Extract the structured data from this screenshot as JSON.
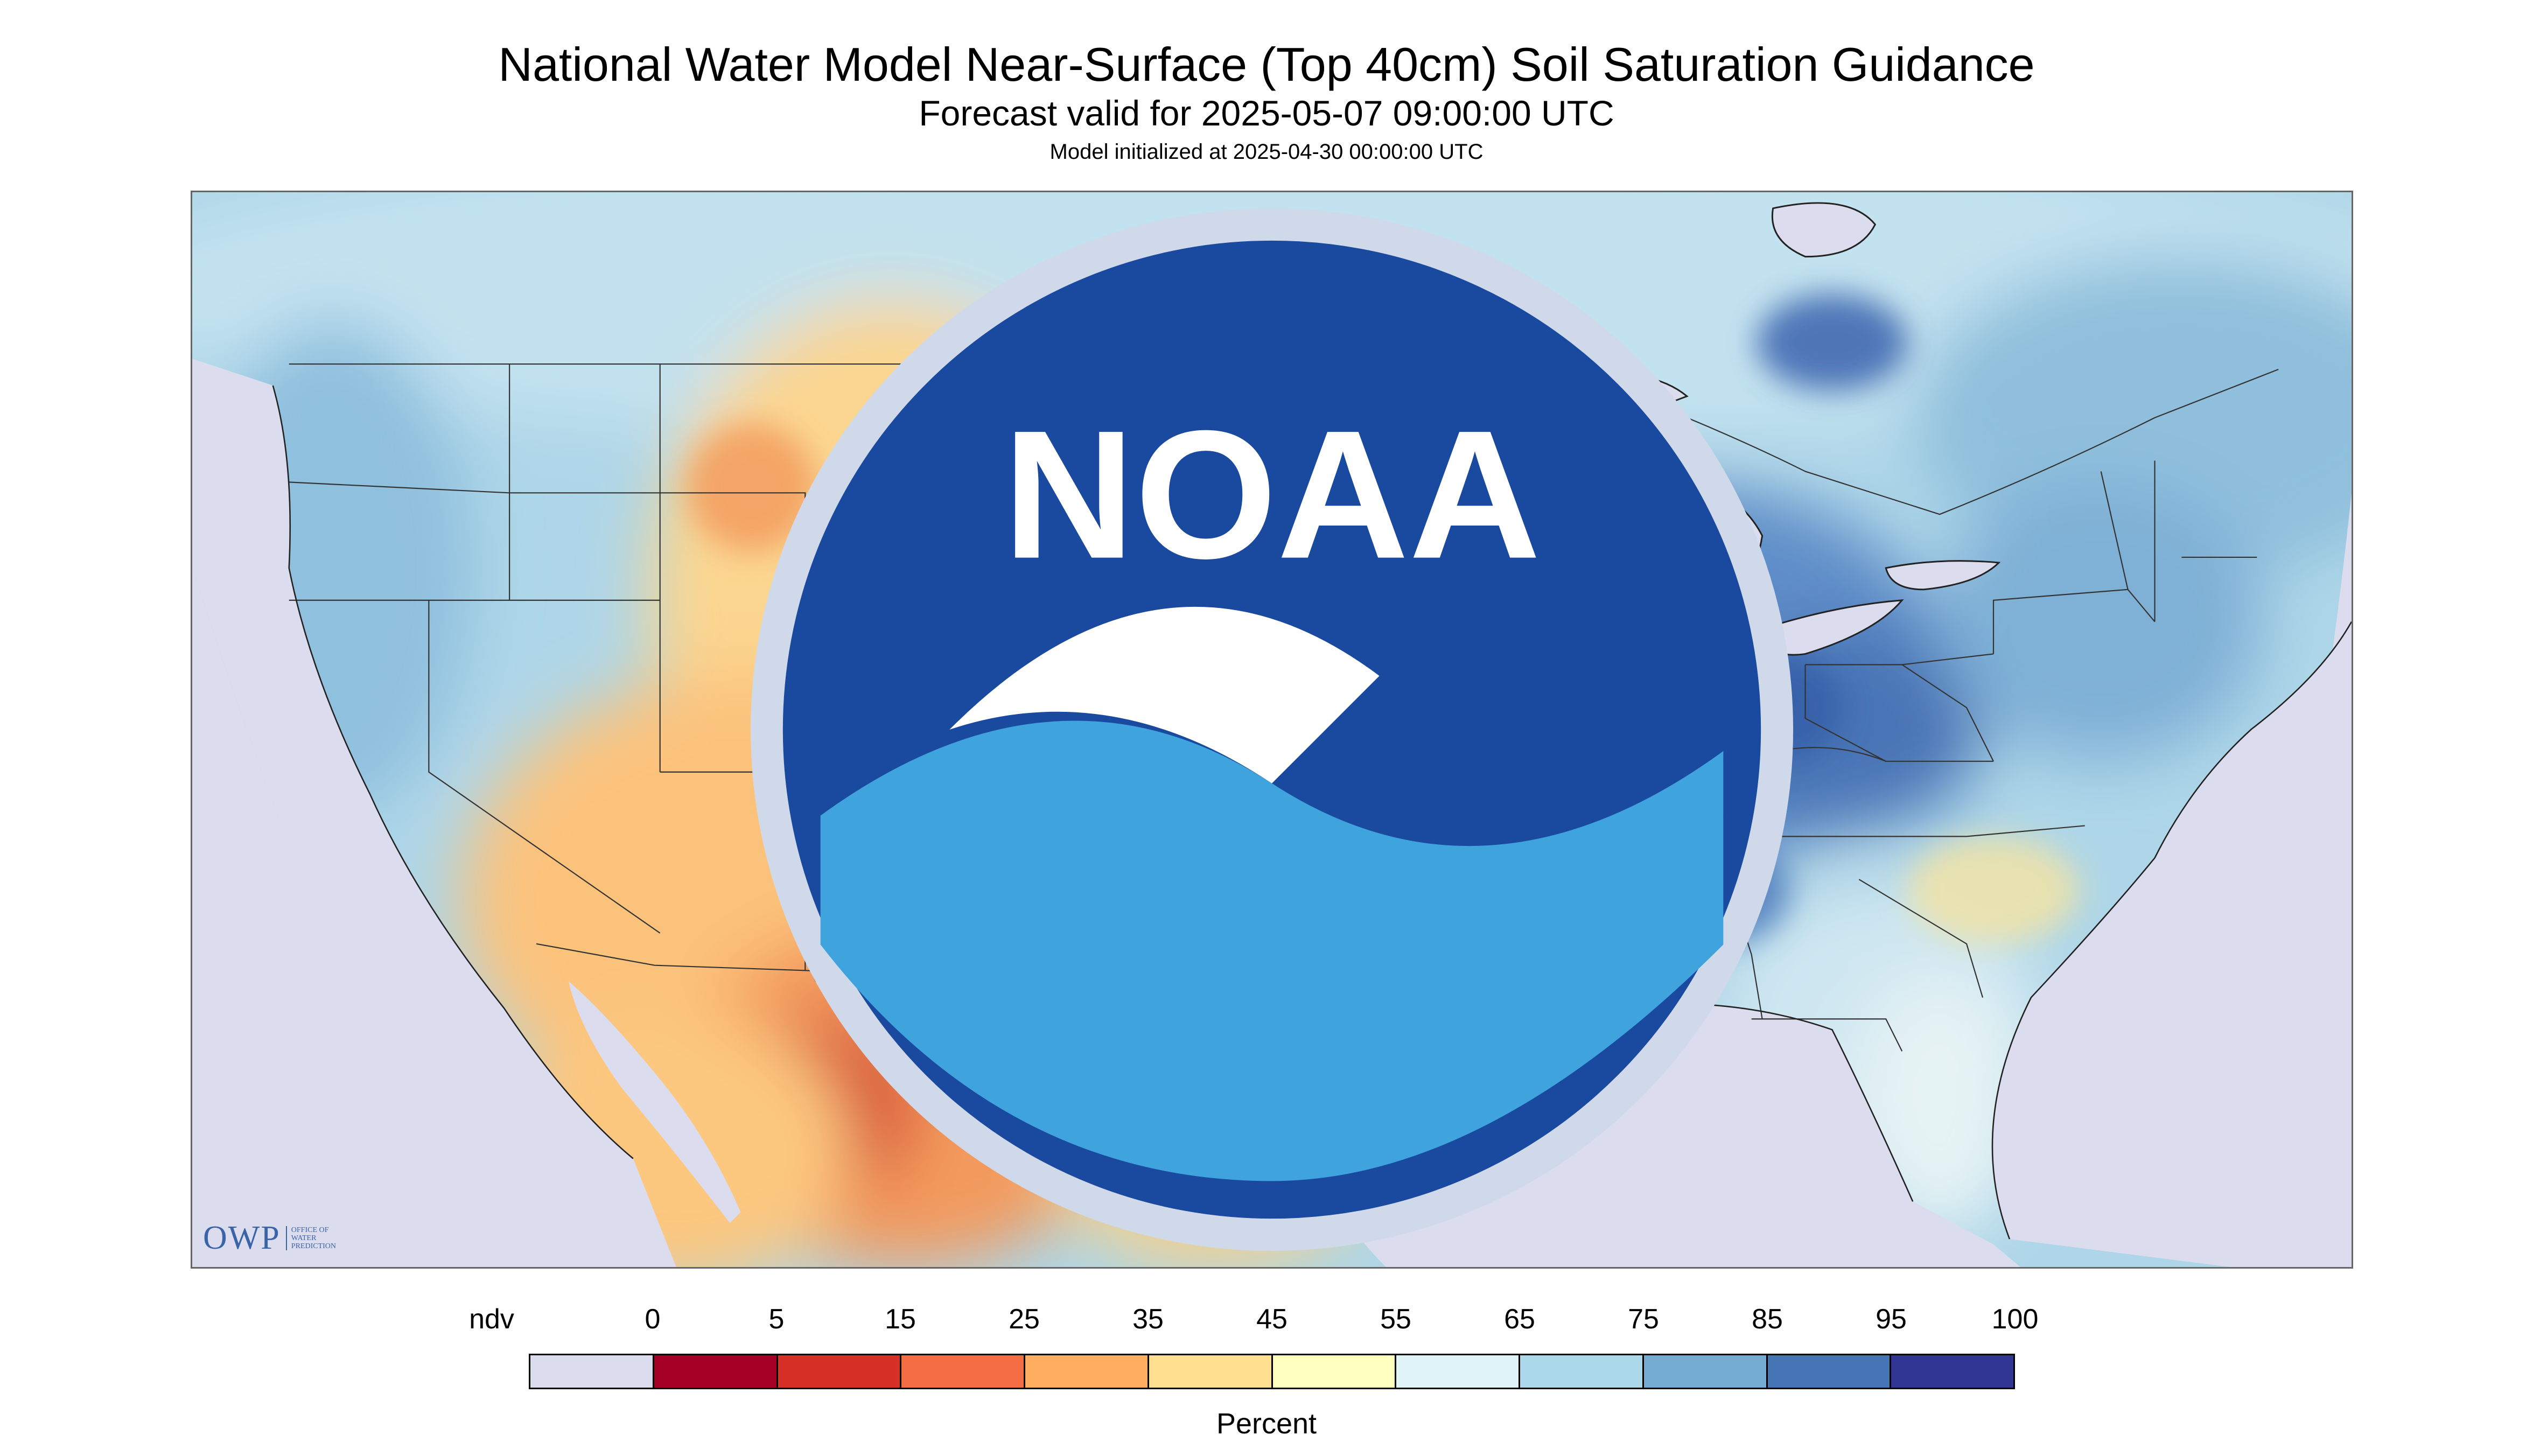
{
  "header": {
    "title": "National Water Model Near-Surface (Top 40cm) Soil Saturation Guidance",
    "valid": "Forecast valid for 2025-05-07 09:00:00 UTC",
    "initialized": "Model initialized at 2025-04-30 00:00:00 UTC"
  },
  "map": {
    "variable": "Near-surface soil saturation",
    "no_data_color": "#dcdcef",
    "water_color": "#dcdcef",
    "state_border_color": "#333333",
    "dominant_pattern": [
      {
        "region": "Southwest / Mexico",
        "color": "#f4a45a"
      },
      {
        "region": "Central Great Plains",
        "color": "#f9e3a0"
      },
      {
        "region": "South-central Plains",
        "color": "#4d80bd"
      },
      {
        "region": "Ohio Valley",
        "color": "#3e68b0"
      },
      {
        "region": "Southern Canada",
        "color": "#bfe0ef"
      }
    ]
  },
  "logos": {
    "owp_letters": "OWP",
    "owp_sub_1": "OFFICE OF",
    "owp_sub_2": "WATER",
    "owp_sub_3": "PREDICTION",
    "noaa_text": "NOAA"
  },
  "legend": {
    "title": "Percent",
    "labels": [
      "ndv",
      "0",
      "5",
      "15",
      "25",
      "35",
      "45",
      "55",
      "65",
      "75",
      "85",
      "95",
      "100"
    ],
    "colors": [
      "#dcdcef",
      "#a50026",
      "#d73027",
      "#f46d43",
      "#fdae61",
      "#fee090",
      "#ffffbf",
      "#e0f3f8",
      "#abd9e9",
      "#74add1",
      "#4575b4",
      "#313695"
    ]
  }
}
